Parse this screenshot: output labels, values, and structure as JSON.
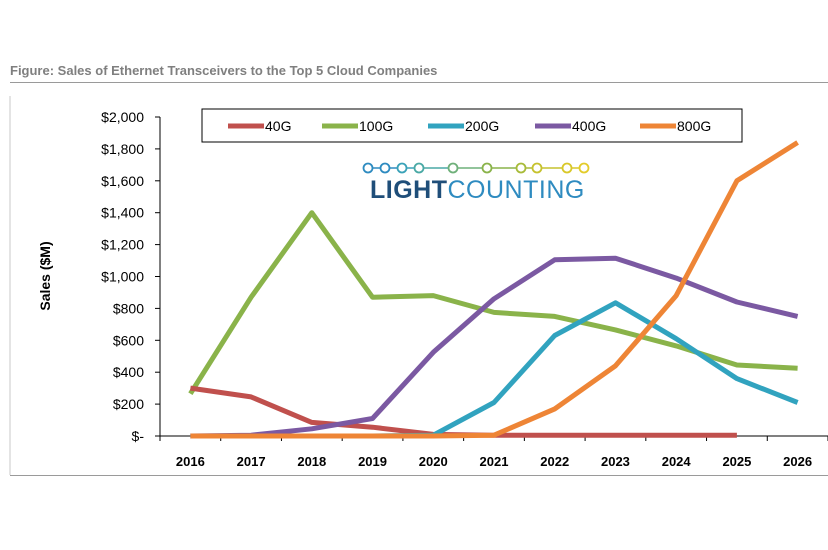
{
  "figure_title": "Figure: Sales of Ethernet Transceivers to the Top 5 Cloud Companies",
  "logo": {
    "bold": "LIGHT",
    "light": "COUNTING",
    "bold_color": "#1f4e79",
    "light_color": "#2e8bc0"
  },
  "chart_data": {
    "type": "line",
    "title": "",
    "xlabel": "",
    "ylabel": "Sales ($M)",
    "x": [
      "2016",
      "2017",
      "2018",
      "2019",
      "2020",
      "2021",
      "2022",
      "2023",
      "2024",
      "2025",
      "2026"
    ],
    "ylim": [
      0,
      2000
    ],
    "yticks": [
      0,
      200,
      400,
      600,
      800,
      1000,
      1200,
      1400,
      1600,
      1800,
      2000
    ],
    "ytick_labels": [
      "$-",
      "$200",
      "$400",
      "$600",
      "$800",
      "$1,000",
      "$1,200",
      "$1,400",
      "$1,600",
      "$1,800",
      "$2,000"
    ],
    "legend_position": "top",
    "grid": false,
    "series": [
      {
        "name": "40G",
        "color": "#c0504d",
        "values": [
          300,
          245,
          85,
          55,
          10,
          5,
          5,
          5,
          5,
          5,
          null
        ]
      },
      {
        "name": "100G",
        "color": "#8ab34a",
        "values": [
          265,
          870,
          1400,
          870,
          880,
          775,
          750,
          665,
          565,
          445,
          425
        ]
      },
      {
        "name": "200G",
        "color": "#31a3bf",
        "values": [
          0,
          0,
          0,
          0,
          5,
          210,
          630,
          835,
          610,
          360,
          210
        ]
      },
      {
        "name": "400G",
        "color": "#7b59a2",
        "values": [
          0,
          5,
          45,
          110,
          525,
          860,
          1105,
          1115,
          990,
          840,
          750
        ]
      },
      {
        "name": "800G",
        "color": "#ee8536",
        "values": [
          0,
          0,
          0,
          0,
          0,
          5,
          170,
          440,
          880,
          1600,
          1840
        ]
      }
    ]
  }
}
